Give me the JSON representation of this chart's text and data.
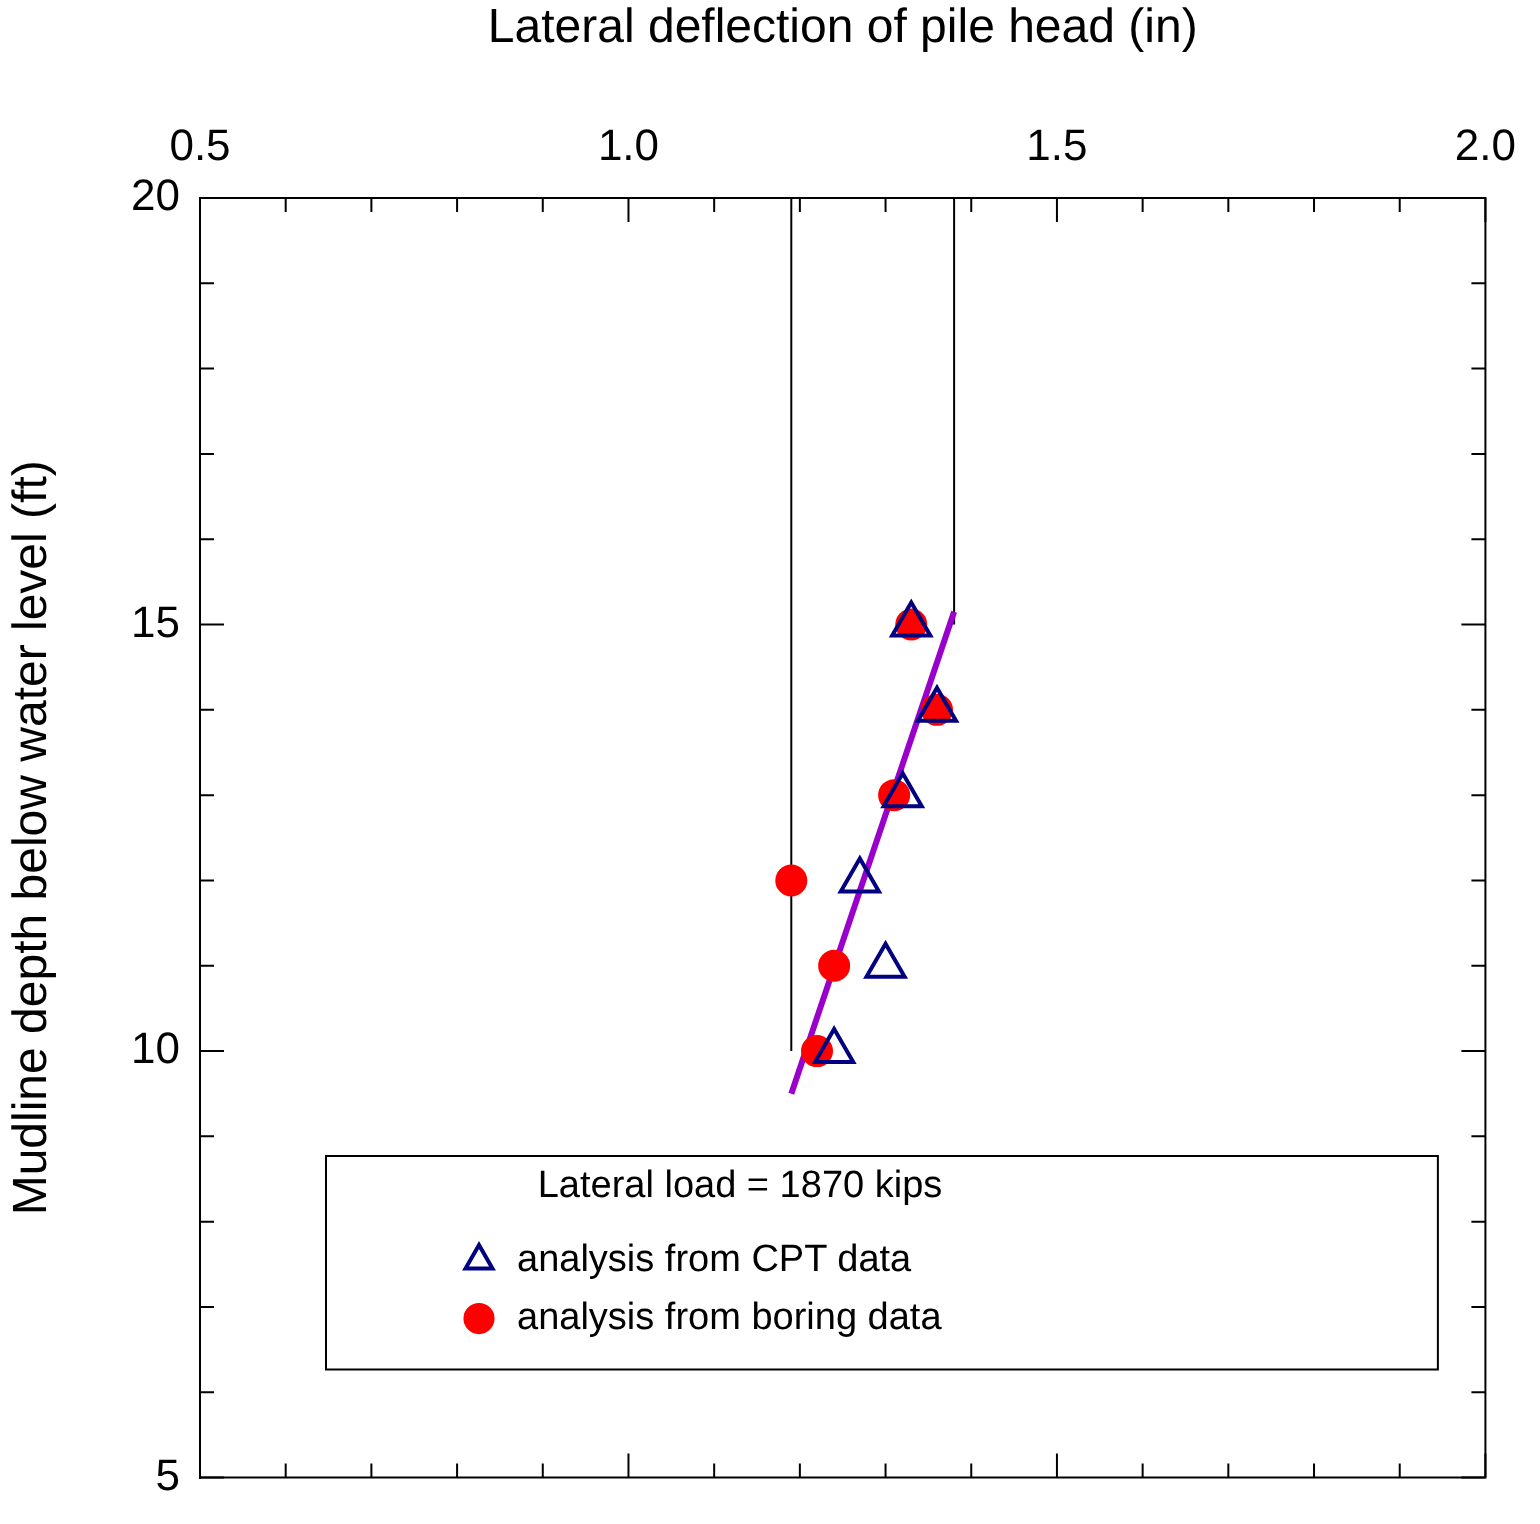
{
  "chart_data": {
    "type": "scatter",
    "xlabel": "Lateral deflection of pile head (in)",
    "ylabel": "Mudline depth below water level (ft)",
    "legend_title": "Lateral load = 1870 kips",
    "legend": "bottom",
    "xlim": [
      0.5,
      2.0
    ],
    "ylim": [
      5,
      20
    ],
    "xticks": [
      {
        "value": 0.5,
        "label": "0.5"
      },
      {
        "value": 0.6,
        "label": null
      },
      {
        "value": 0.7,
        "label": null
      },
      {
        "value": 0.8,
        "label": null
      },
      {
        "value": 0.9,
        "label": null
      },
      {
        "value": 1.0,
        "label": "1.0"
      },
      {
        "value": 1.1,
        "label": null
      },
      {
        "value": 1.2,
        "label": null
      },
      {
        "value": 1.3,
        "label": null
      },
      {
        "value": 1.4,
        "label": null
      },
      {
        "value": 1.5,
        "label": "1.5"
      },
      {
        "value": 1.6,
        "label": null
      },
      {
        "value": 1.7,
        "label": null
      },
      {
        "value": 1.8,
        "label": null
      },
      {
        "value": 1.9,
        "label": null
      },
      {
        "value": 2.0,
        "label": "2.0"
      }
    ],
    "yticks": [
      5,
      {
        "value": 6,
        "label": null
      },
      {
        "value": 7,
        "label": null
      },
      {
        "value": 8,
        "label": null
      },
      {
        "value": 9,
        "label": null
      },
      10,
      {
        "value": 11,
        "label": null
      },
      {
        "value": 12,
        "label": null
      },
      {
        "value": 13,
        "label": null
      },
      {
        "value": 14,
        "label": null
      },
      15,
      {
        "value": 16,
        "label": null
      },
      {
        "value": 17,
        "label": null
      },
      {
        "value": 18,
        "label": null
      },
      {
        "value": 19,
        "label": null
      },
      20
    ],
    "series": [
      {
        "name": "analysis from boring data",
        "marker": "circle",
        "color": "#ff0000",
        "x": [
          1.33,
          1.36,
          1.31,
          1.19,
          1.24,
          1.22
        ],
        "values": [
          15,
          14,
          13,
          12,
          11,
          10
        ]
      },
      {
        "name": "analysis from CPT data",
        "marker": "triangle",
        "color": "#000080",
        "x": [
          1.33,
          1.36,
          1.32,
          1.27,
          1.3,
          1.24
        ],
        "values": [
          15,
          14,
          13,
          12,
          11,
          10
        ]
      },
      {
        "type": "line",
        "marker": "none",
        "color": "#9900cc",
        "x": [
          1.19,
          1.38
        ],
        "values": [
          9.5,
          15.15
        ]
      },
      {
        "type": "line",
        "marker": "none",
        "color": "#000000",
        "x": [
          1.19,
          1.19
        ],
        "values": [
          10,
          20
        ]
      },
      {
        "type": "line",
        "marker": "none",
        "color": "#000000",
        "x": [
          1.38,
          1.38
        ],
        "values": [
          15,
          20
        ]
      }
    ]
  }
}
